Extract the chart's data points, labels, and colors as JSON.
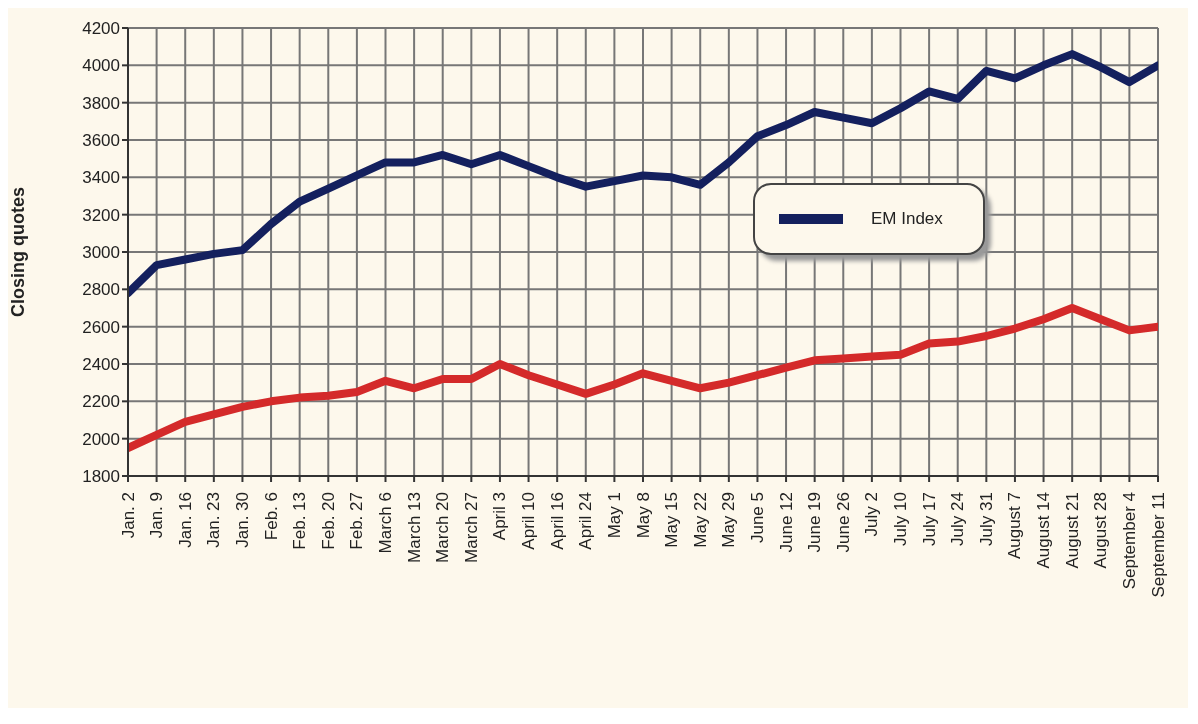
{
  "chart_data": {
    "type": "line",
    "ylabel": "Closing quotes",
    "categories": [
      "Jan. 2",
      "Jan. 9",
      "Jan. 16",
      "Jan. 23",
      "Jan. 30",
      "Feb. 6",
      "Feb. 13",
      "Feb. 20",
      "Feb. 27",
      "March 6",
      "March 13",
      "March 20",
      "March 27",
      "April 3",
      "April 10",
      "April 16",
      "April 24",
      "May 1",
      "May 8",
      "May 15",
      "May 22",
      "May 29",
      "June 5",
      "June 12",
      "June 19",
      "June 26",
      "July 2",
      "July 10",
      "July 17",
      "July 24",
      "July 31",
      "August 7",
      "August 14",
      "August 21",
      "August 28",
      "September 4",
      "September 11"
    ],
    "series": [
      {
        "name": "EM Index",
        "color": "#14205e",
        "values": [
          2780,
          2930,
          2960,
          2990,
          3010,
          3150,
          3270,
          3340,
          3410,
          3480,
          3480,
          3520,
          3470,
          3520,
          3460,
          3400,
          3350,
          3380,
          3410,
          3400,
          3360,
          3480,
          3620,
          3680,
          3750,
          3720,
          3690,
          3770,
          3860,
          3820,
          3970,
          3930,
          4000,
          4060,
          3990,
          3910,
          4000
        ]
      },
      {
        "color": "#d42a2a",
        "values": [
          1950,
          2020,
          2090,
          2130,
          2170,
          2200,
          2220,
          2230,
          2250,
          2310,
          2270,
          2320,
          2320,
          2400,
          2340,
          2290,
          2240,
          2290,
          2350,
          2310,
          2270,
          2300,
          2340,
          2380,
          2420,
          2430,
          2440,
          2450,
          2510,
          2520,
          2550,
          2590,
          2640,
          2700,
          2640,
          2580,
          2600
        ]
      }
    ],
    "ylim": [
      1800,
      4200
    ],
    "yticks": [
      1800,
      2000,
      2200,
      2400,
      2600,
      2800,
      3000,
      3200,
      3400,
      3600,
      3800,
      4000,
      4200
    ],
    "grid": true,
    "legend": "right"
  }
}
